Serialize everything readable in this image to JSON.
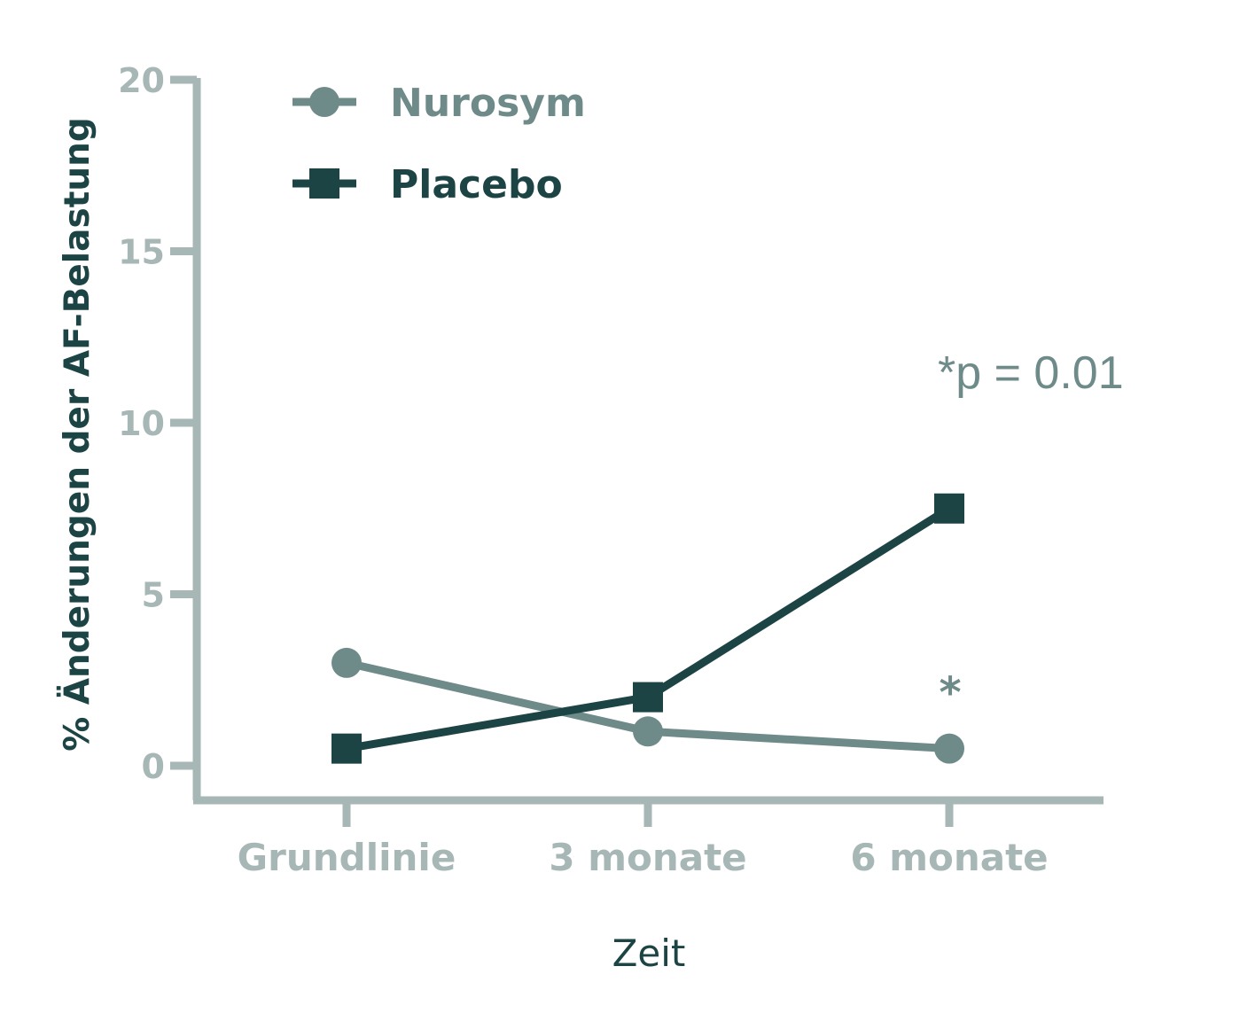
{
  "chart_data": {
    "type": "line",
    "categories": [
      "Grundlinie",
      "3 monate",
      "6 monate"
    ],
    "series": [
      {
        "name": "Nurosym",
        "values": [
          3,
          1,
          0.5
        ],
        "color": "#6e8b8a",
        "marker": "circle"
      },
      {
        "name": "Placebo",
        "values": [
          0.5,
          2,
          7.5
        ],
        "color": "#1d4444",
        "marker": "square"
      }
    ],
    "ylabel": "% Änderungen der AF-Belastung",
    "xlabel": "Zeit",
    "ylim": [
      0,
      20
    ],
    "yticks": [
      "0",
      "5",
      "10",
      "15",
      "20"
    ],
    "annotations": {
      "pvalue": "*p = 0.01",
      "significance": "*"
    },
    "legend_position": "top-left",
    "axis_color": "#a7b7b6",
    "grid": false
  }
}
